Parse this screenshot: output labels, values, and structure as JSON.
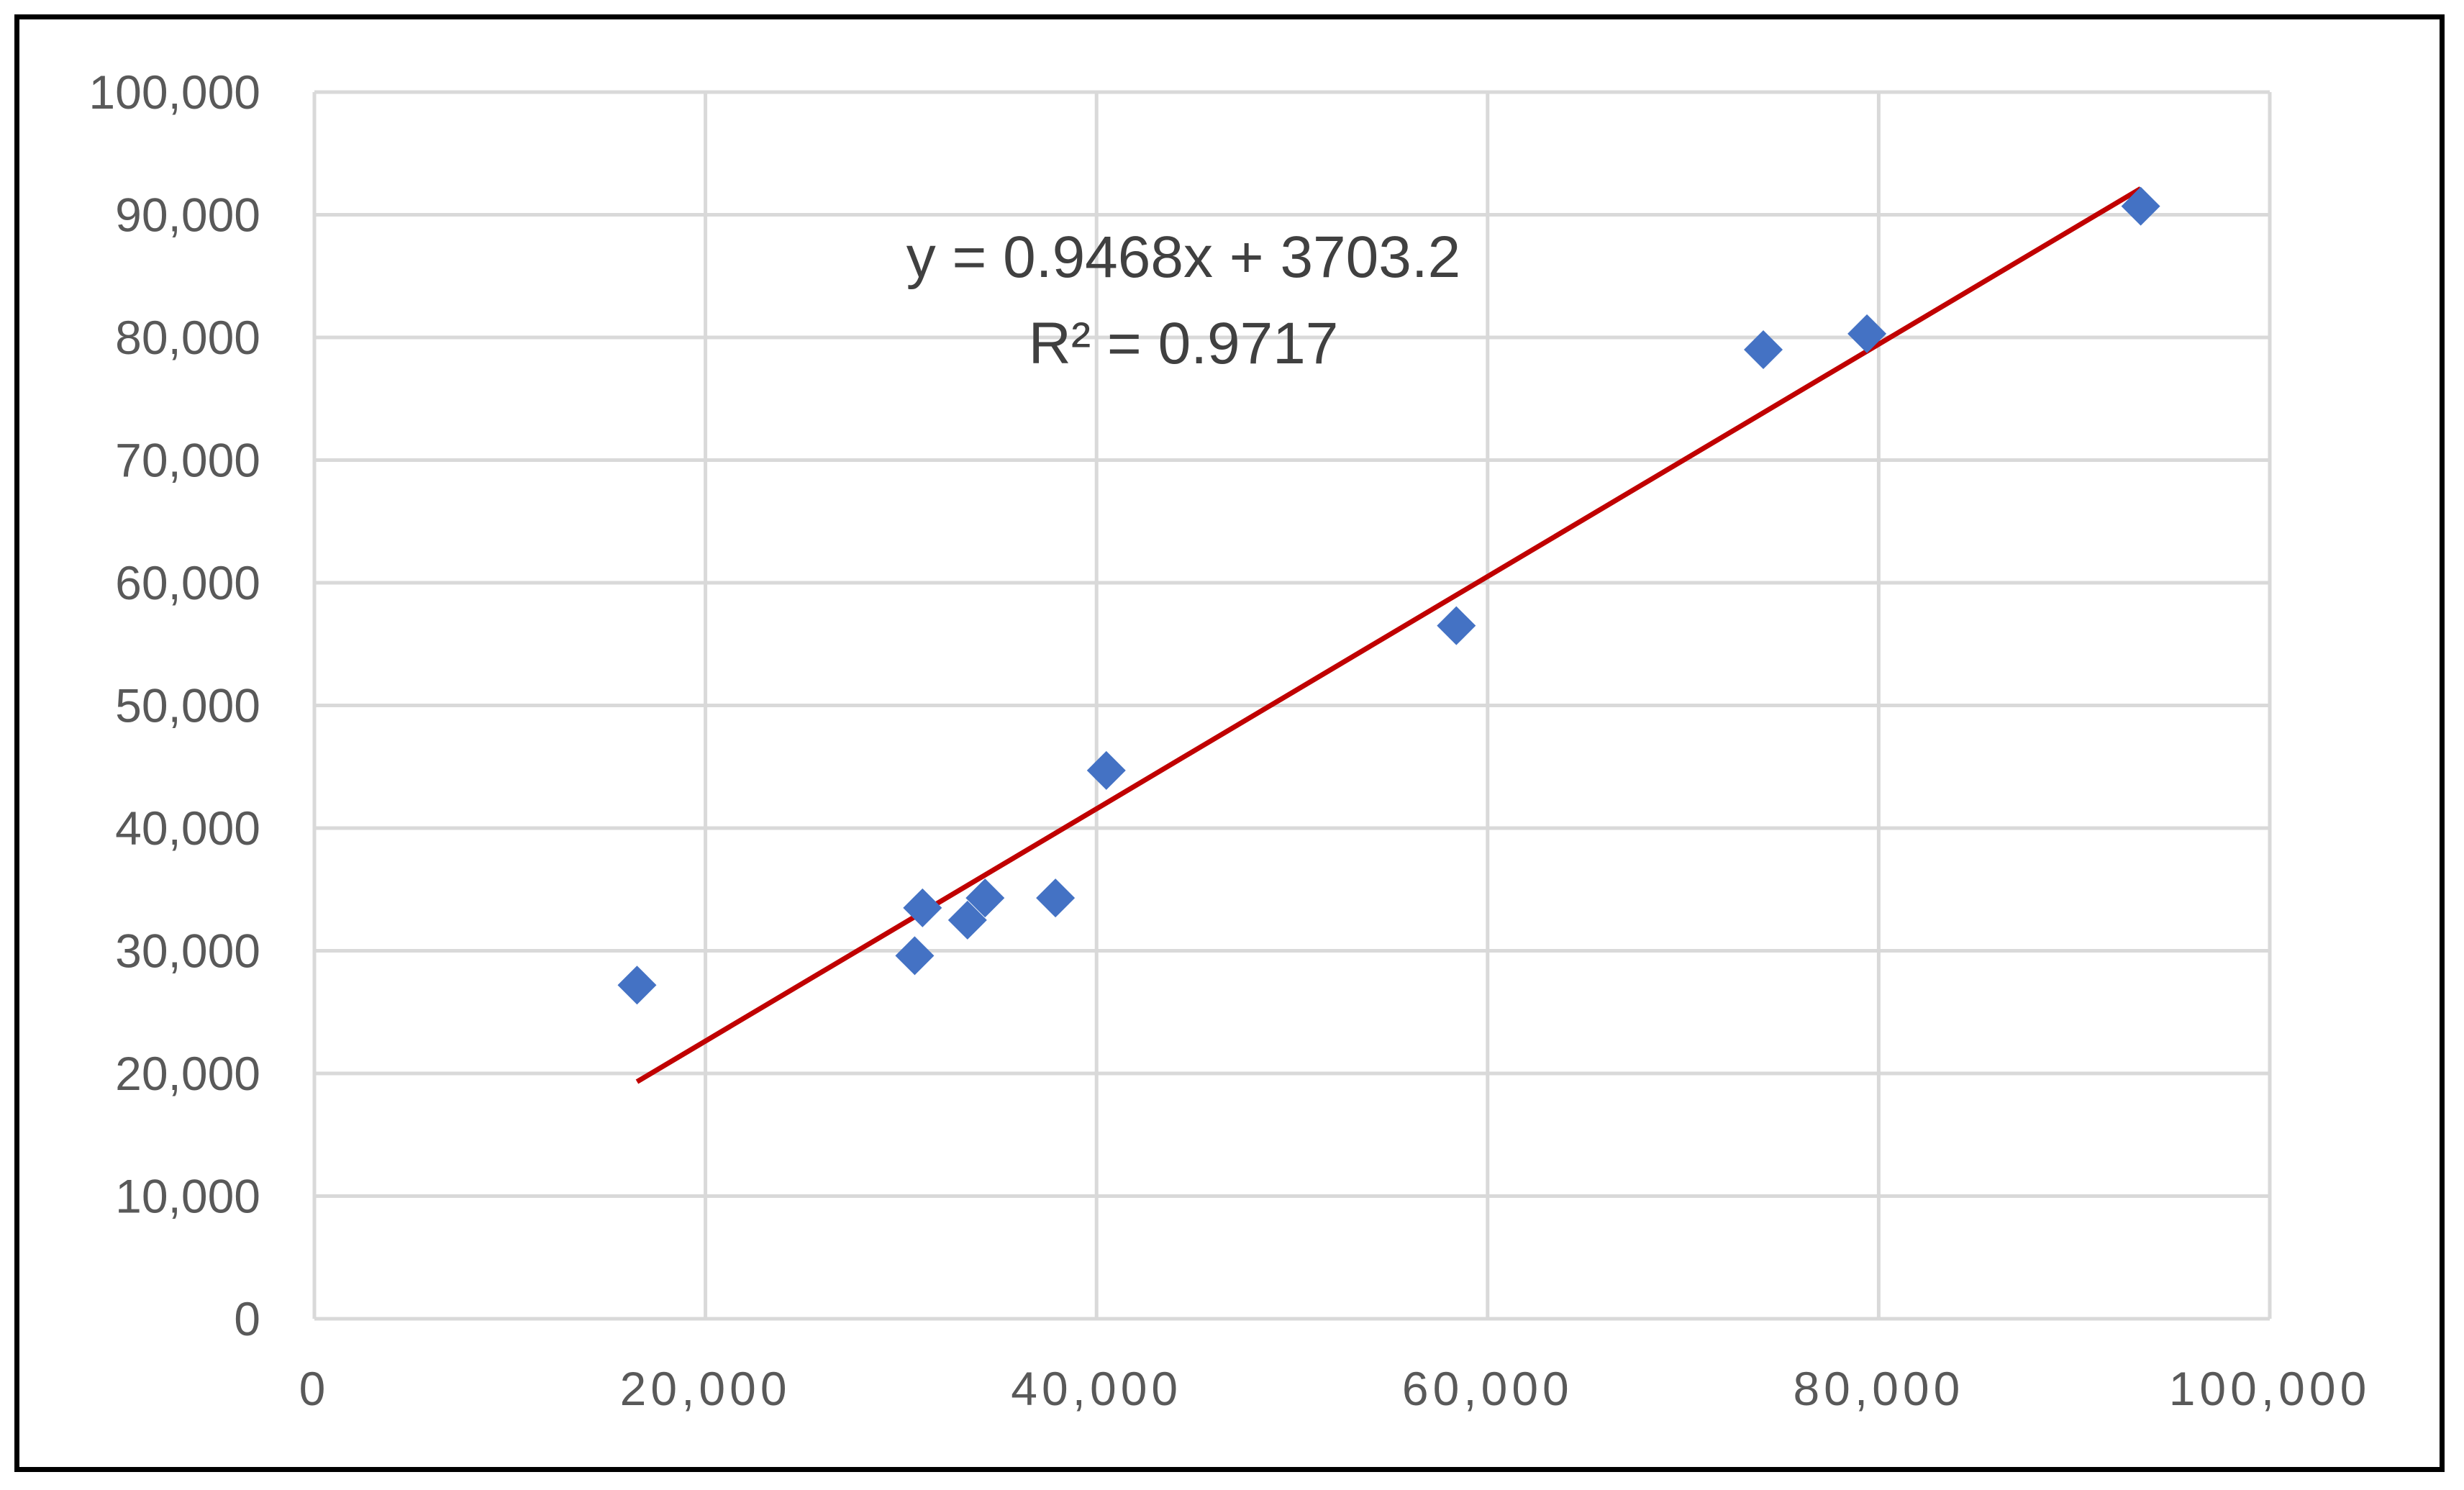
{
  "chart_data": {
    "type": "scatter",
    "xlim": [
      0,
      100000
    ],
    "ylim": [
      0,
      100000
    ],
    "x_ticks": [
      "0",
      "20,000",
      "40,000",
      "60,000",
      "80,000",
      "100,000"
    ],
    "y_ticks": [
      "0",
      "10,000",
      "20,000",
      "30,000",
      "40,000",
      "50,000",
      "60,000",
      "70,000",
      "80,000",
      "90,000",
      "100,000"
    ],
    "grid": true,
    "series": [
      {
        "marker": "diamond",
        "color": "#4472c4",
        "points": [
          {
            "x": 16500,
            "y": 27200
          },
          {
            "x": 30700,
            "y": 29600
          },
          {
            "x": 31100,
            "y": 33500
          },
          {
            "x": 33400,
            "y": 32500
          },
          {
            "x": 34300,
            "y": 34300
          },
          {
            "x": 37900,
            "y": 34300
          },
          {
            "x": 40500,
            "y": 44700
          },
          {
            "x": 58400,
            "y": 56500
          },
          {
            "x": 74100,
            "y": 79000
          },
          {
            "x": 79400,
            "y": 80300
          },
          {
            "x": 93400,
            "y": 90700
          }
        ]
      }
    ],
    "trendline": {
      "color": "#c00000",
      "slope": 0.9468,
      "intercept": 3703.2,
      "x_range": [
        16500,
        93400
      ],
      "equation_text": "y = 0.9468x + 3703.2",
      "r2_text": "R² = 0.9717"
    }
  }
}
